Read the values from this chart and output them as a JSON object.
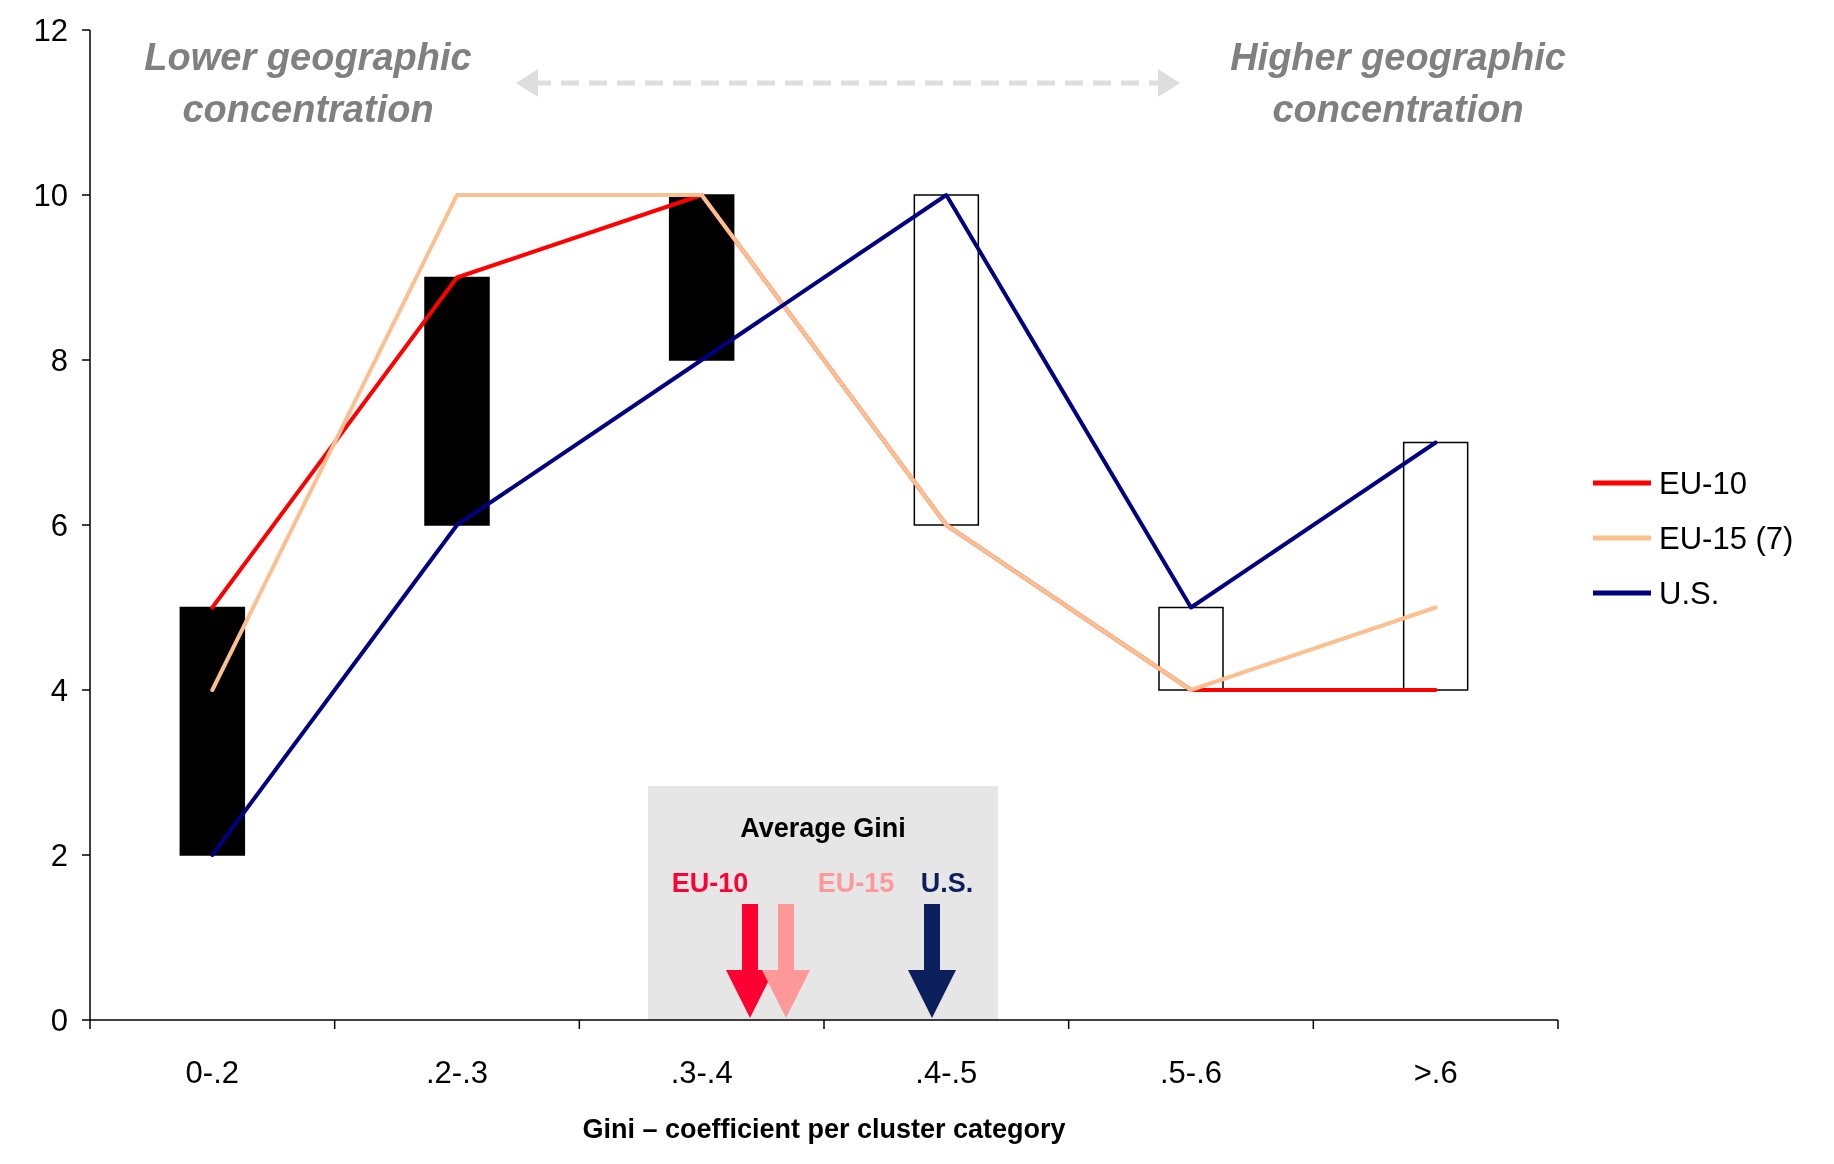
{
  "chart_data": {
    "type": "line",
    "xlabel": "Gini – coefficient per cluster category",
    "categories": [
      "0-.2",
      ".2-.3",
      ".3-.4",
      ".4-.5",
      ".5-.6",
      ">.6"
    ],
    "series": [
      {
        "name": "EU-10",
        "color": "#ff0000",
        "values": [
          5,
          9,
          10,
          6,
          4,
          4
        ]
      },
      {
        "name": "EU-15 (7)",
        "color": "#fac090",
        "values": [
          4,
          10,
          10,
          6,
          4,
          5
        ]
      },
      {
        "name": "U.S.",
        "color": "#000080",
        "values": [
          2,
          6,
          8,
          10,
          5,
          7
        ]
      },
      {
        "type": "bar",
        "values": [
          3,
          3,
          2,
          4,
          1,
          3
        ],
        "base": [
          2,
          6,
          8,
          6,
          4,
          4
        ],
        "colors": [
          "#000000",
          "#000000",
          "#000000",
          "#ffffff",
          "#ffffff",
          "#ffffff"
        ]
      }
    ],
    "ylim": [
      0,
      12
    ],
    "yticks": [
      0,
      2,
      4,
      6,
      8,
      10,
      12
    ],
    "grid": false,
    "legend": "right",
    "marker": "none",
    "line_style": "solid",
    "annotations": [
      "Lower geographic concentration",
      "Higher geographic concentration",
      "Average Gini",
      "EU-10",
      "EU-15",
      "U.S."
    ]
  }
}
